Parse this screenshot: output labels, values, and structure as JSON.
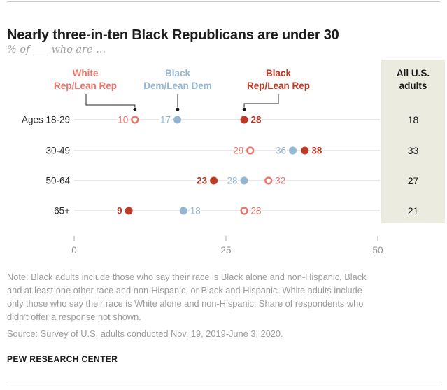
{
  "title": "Nearly three-in-ten Black Republicans are under 30",
  "subtitle": "% of ___ who are ...",
  "all_us_header": {
    "line1": "All U.S.",
    "line2": "adults"
  },
  "colors": {
    "white_rep": "#e8756b",
    "black_dem": "#94b6d2",
    "black_rep": "#bf3927",
    "panel_bg": "#ebebe0",
    "row_line": "#d9d9d9",
    "callout": "#4d4d4d",
    "callout_dot": "#111111",
    "axis_text": "#8f8f8f",
    "tick_mark": "#b8b8b8",
    "row_label_text": "#2b2b2b",
    "panel_text": "#1a1a1a"
  },
  "chart_data": {
    "type": "scatter",
    "subtype": "horizontal-dot-plot",
    "title": "Nearly three-in-ten Black Republicans are under 30",
    "xlabel": "",
    "ylabel": "",
    "xlim": [
      0,
      50
    ],
    "x_ticks": [
      0,
      25,
      50
    ],
    "grid": false,
    "legend_position": "top",
    "series": [
      {
        "id": "white_rep",
        "label_line1": "White",
        "label_line2": "Rep/Lean Rep",
        "marker": "open-circle"
      },
      {
        "id": "black_dem",
        "label_line1": "Black",
        "label_line2": "Dem/Lean Dem",
        "marker": "filled-circle"
      },
      {
        "id": "black_rep",
        "label_line1": "Black",
        "label_line2": "Rep/Lean Rep",
        "marker": "filled-circle"
      }
    ],
    "extra_column": "All U.S. adults",
    "rows": [
      {
        "label": "Ages 18-29",
        "all_us_adults": 18,
        "points": [
          {
            "series": "white_rep",
            "value": 10,
            "marker": "open",
            "label_side": "left",
            "bold": false
          },
          {
            "series": "black_dem",
            "value": 17,
            "marker": "filled",
            "label_side": "left",
            "bold": false
          },
          {
            "series": "black_rep",
            "value": 28,
            "marker": "filled",
            "label_side": "right",
            "bold": true
          }
        ]
      },
      {
        "label": "30-49",
        "all_us_adults": 33,
        "points": [
          {
            "series": "white_rep",
            "value": 29,
            "marker": "open",
            "label_side": "left",
            "bold": false
          },
          {
            "series": "black_dem",
            "value": 36,
            "marker": "filled",
            "label_side": "left",
            "bold": false
          },
          {
            "series": "black_rep",
            "value": 38,
            "marker": "filled",
            "label_side": "right",
            "bold": true
          }
        ]
      },
      {
        "label": "50-64",
        "all_us_adults": 27,
        "points": [
          {
            "series": "black_rep",
            "value": 23,
            "marker": "filled",
            "label_side": "left",
            "bold": true
          },
          {
            "series": "black_dem",
            "value": 28,
            "marker": "filled",
            "label_side": "left",
            "bold": false
          },
          {
            "series": "white_rep",
            "value": 32,
            "marker": "open",
            "label_side": "right",
            "bold": false
          }
        ]
      },
      {
        "label": "65+",
        "all_us_adults": 21,
        "points": [
          {
            "series": "black_rep",
            "value": 9,
            "marker": "filled",
            "label_side": "left",
            "bold": true
          },
          {
            "series": "black_dem",
            "value": 18,
            "marker": "filled",
            "label_side": "right",
            "bold": false
          },
          {
            "series": "white_rep",
            "value": 28,
            "marker": "open",
            "label_side": "right",
            "bold": false
          }
        ]
      }
    ]
  },
  "note_lines": [
    "Note: Black adults include those who say their race is Black alone and non-Hispanic, Black",
    "and at least one other race and non-Hispanic, or Black and Hispanic. White adults include",
    "only those who say their race is White alone and non-Hispanic. Share of respondents who",
    "didn’t offer a response not shown."
  ],
  "source": "Source: Survey of U.S. adults conducted Nov. 19, 2019-June 3, 2020.",
  "footer": "PEW RESEARCH CENTER"
}
